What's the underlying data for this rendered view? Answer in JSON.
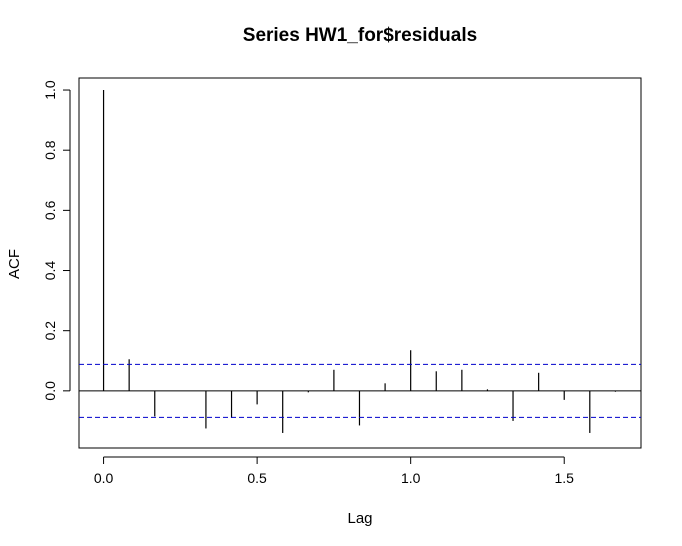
{
  "chart_data": {
    "type": "bar",
    "title": "Series  HW1_for$residuals",
    "xlabel": "Lag",
    "ylabel": "ACF",
    "xlim": [
      -0.08,
      1.75
    ],
    "ylim": [
      -0.19,
      1.04
    ],
    "x_ticks": [
      0.0,
      0.5,
      1.0,
      1.5
    ],
    "x_tick_labels": [
      "0.0",
      "0.5",
      "1.0",
      "1.5"
    ],
    "y_ticks": [
      0.0,
      0.2,
      0.4,
      0.6,
      0.8,
      1.0
    ],
    "y_tick_labels": [
      "0.0",
      "0.2",
      "0.4",
      "0.6",
      "0.8",
      "1.0"
    ],
    "confidence_bound": 0.088,
    "zero_line": 0,
    "series": [
      {
        "lag": [
          0.0,
          0.0833,
          0.1667,
          0.25,
          0.3333,
          0.4167,
          0.5,
          0.5833,
          0.6667,
          0.75,
          0.8333,
          0.9167,
          1.0,
          1.0833,
          1.1667,
          1.25,
          1.3333,
          1.4167,
          1.5,
          1.5833,
          1.6667
        ],
        "acf": [
          1.0,
          0.105,
          -0.085,
          0.0,
          -0.125,
          -0.09,
          -0.045,
          -0.14,
          -0.005,
          0.07,
          -0.115,
          0.025,
          0.135,
          0.065,
          0.07,
          0.005,
          -0.1,
          0.06,
          -0.03,
          -0.14,
          -0.003
        ]
      }
    ],
    "colors": {
      "bars": "#000000",
      "confidence": "#0000cc",
      "axes": "#000000"
    },
    "grid": false
  }
}
